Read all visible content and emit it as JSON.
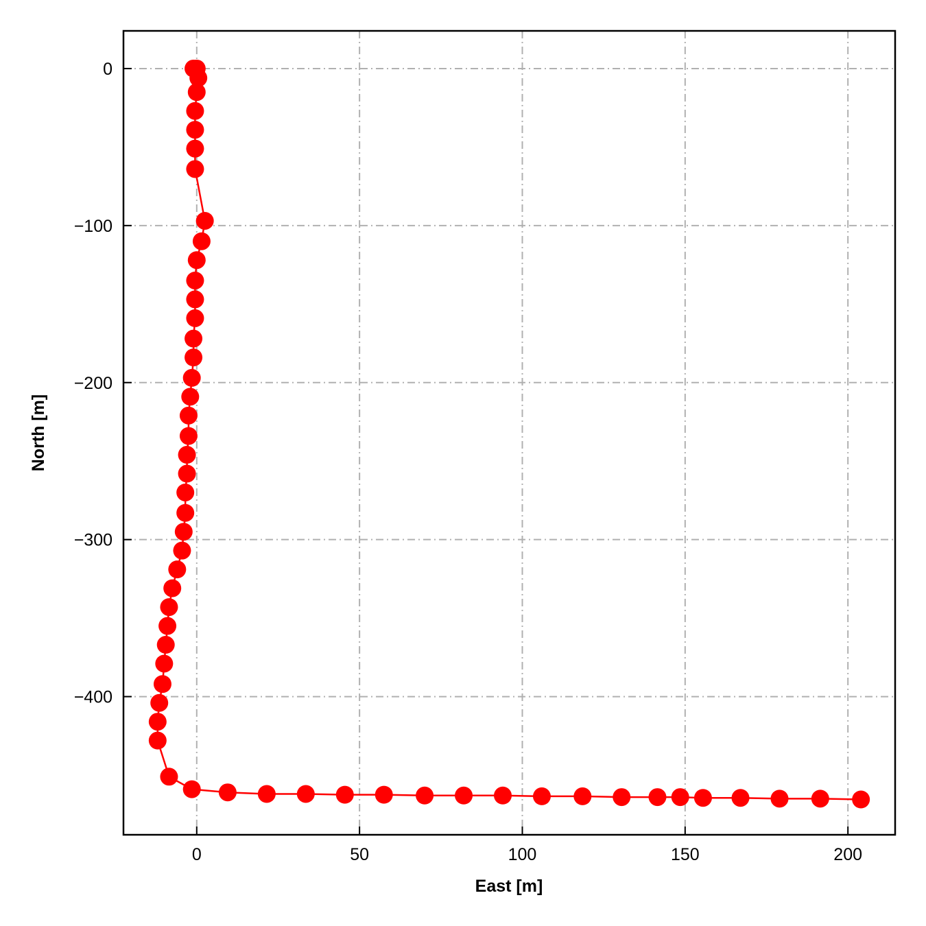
{
  "chart_data": {
    "type": "line",
    "title": "",
    "xlabel": "East [m]",
    "ylabel": "North [m]",
    "xlim": [
      -22.5,
      214.5
    ],
    "ylim": [
      -488,
      24
    ],
    "xticks": [
      0,
      50,
      100,
      150,
      200
    ],
    "yticks": [
      0,
      -100,
      -200,
      -300,
      -400
    ],
    "xtick_labels": [
      "0",
      "50",
      "100",
      "150",
      "200"
    ],
    "ytick_labels": [
      "0",
      "−100",
      "−200",
      "−300",
      "−400"
    ],
    "grid": true,
    "grid_style": "dash-dot",
    "legend": "none",
    "series": [
      {
        "color": "#ff0000",
        "marker": "circle",
        "x": [
          -1,
          0,
          0.5,
          0,
          -0.5,
          -0.5,
          -0.5,
          -0.5,
          2.5,
          1.5,
          0,
          -0.5,
          -0.5,
          -0.5,
          -1,
          -1,
          -1.5,
          -2,
          -2.5,
          -2.5,
          -3,
          -3,
          -3.5,
          -3.5,
          -4,
          -4.5,
          -6,
          -7.5,
          -8.5,
          -9,
          -9.5,
          -10,
          -10.5,
          -11.5,
          -12,
          -12,
          -8.5,
          -1.5,
          9.5,
          21.5,
          33.5,
          45.5,
          57.5,
          70,
          82,
          94,
          106,
          118.5,
          130.5,
          141.5,
          148.5,
          155.5,
          167,
          179,
          191.5,
          204
        ],
        "y": [
          0,
          0,
          -6,
          -15,
          -27,
          -39,
          -51,
          -64,
          -97,
          -110,
          -122,
          -135,
          -147,
          -159,
          -172,
          -184,
          -197,
          -209,
          -221,
          -234,
          -246,
          -258,
          -270,
          -283,
          -295,
          -307,
          -319,
          -331,
          -343,
          -355,
          -367,
          -379,
          -392,
          -404,
          -416,
          -428,
          -451,
          -459,
          -461,
          -462,
          -462,
          -462.5,
          -462.5,
          -463,
          -463,
          -463,
          -463.5,
          -463.5,
          -464,
          -464,
          -464,
          -464.5,
          -464.5,
          -465,
          -465,
          -465.5
        ]
      }
    ]
  },
  "colors": {
    "series": "#ff0000",
    "grid": "#b0b0b0",
    "axes": "#000000",
    "background": "#ffffff"
  }
}
